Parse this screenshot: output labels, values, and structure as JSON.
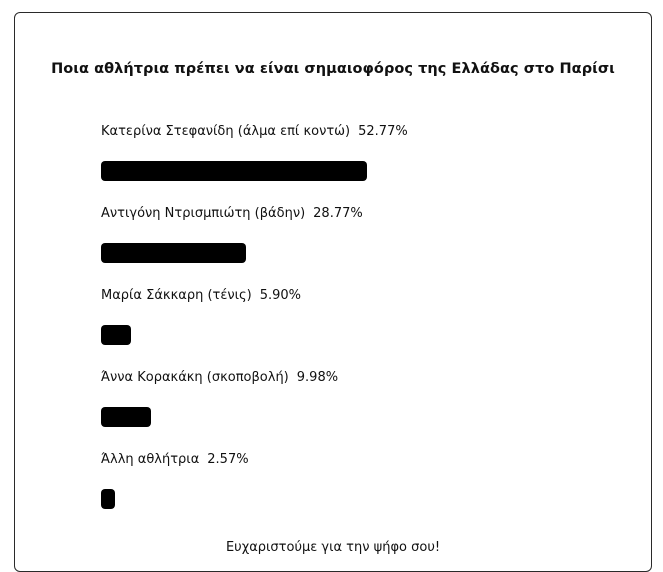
{
  "poll": {
    "title": "Ποια αθλήτρια πρέπει να είναι σημαιοφόρος της Ελλάδας στο Παρίσι",
    "options": [
      {
        "label": "Κατερίνα Στεφανίδη (άλμα επί κοντώ)",
        "percent": "52.77%",
        "value": 52.77
      },
      {
        "label": "Αντιγόνη Ντρισμπιώτη (βάδην)",
        "percent": "28.77%",
        "value": 28.77
      },
      {
        "label": "Μαρία Σάκκαρη (τένις)",
        "percent": "5.90%",
        "value": 5.9
      },
      {
        "label": "Άννα Κορακάκη (σκοποβολή)",
        "percent": "9.98%",
        "value": 9.98
      },
      {
        "label": "Άλλη αθλήτρια",
        "percent": "2.57%",
        "value": 2.57
      }
    ],
    "thanks": "Ευχαριστούμε για την ψήφο σου!"
  }
}
